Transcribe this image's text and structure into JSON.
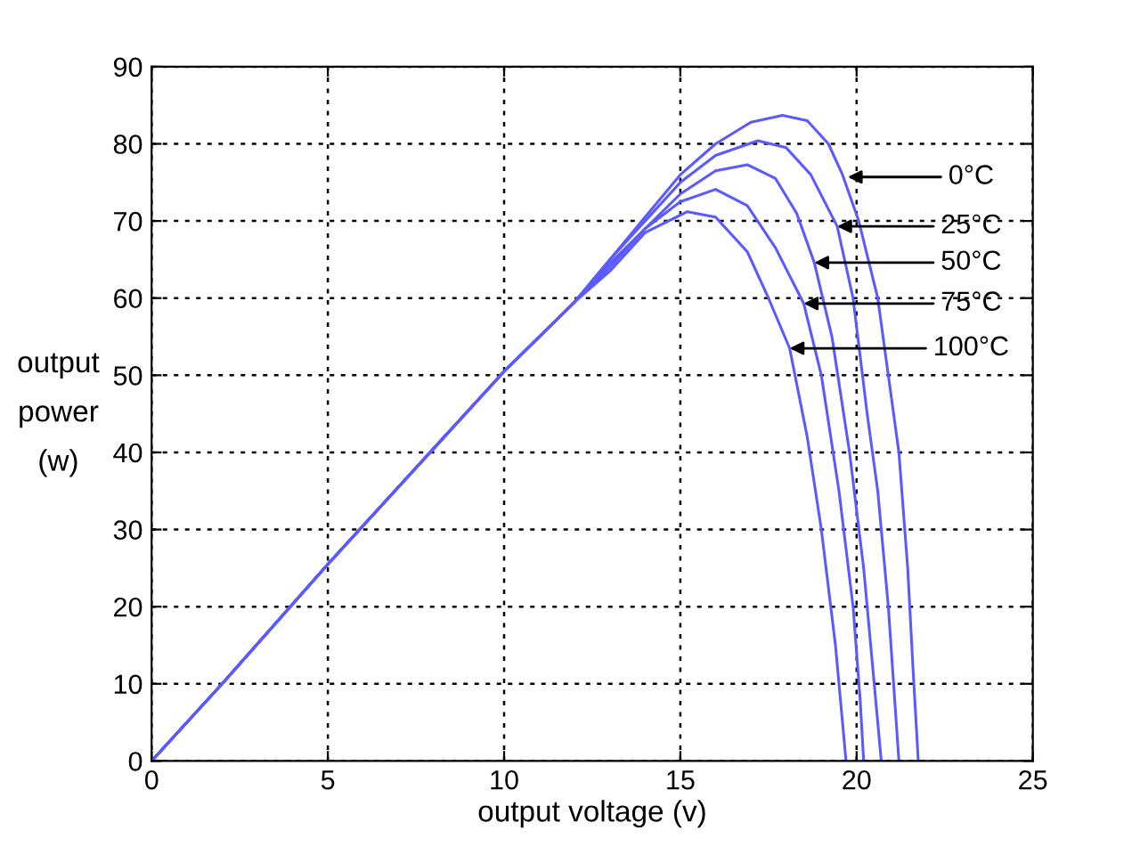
{
  "chart_data": {
    "type": "line",
    "xlabel": "output voltage (v)",
    "ylabel": "output\npower\n(w)",
    "xlim": [
      0,
      25
    ],
    "ylim": [
      0,
      90
    ],
    "xticks": [
      0,
      5,
      10,
      15,
      20,
      25
    ],
    "yticks": [
      0,
      10,
      20,
      30,
      40,
      50,
      60,
      70,
      80,
      90
    ],
    "grid": true,
    "marker": "none",
    "line_style": "solid",
    "series": [
      {
        "color": "#5a5aff",
        "x": [
          0,
          2,
          5,
          8,
          10,
          12,
          13,
          14,
          15,
          16,
          17,
          17.9,
          18.6,
          19.2,
          19.6,
          20.06,
          20.6,
          20.9,
          21.2,
          21.45,
          21.6,
          21.75
        ],
        "values": [
          0,
          10,
          25.5,
          40.5,
          50.5,
          59.5,
          65,
          70.5,
          76,
          80,
          82.8,
          83.7,
          83,
          80,
          76,
          70,
          60,
          50,
          40,
          25,
          12,
          0
        ]
      },
      {
        "color": "#5a5aff",
        "x": [
          0,
          2,
          5,
          8,
          10,
          12,
          13,
          14,
          15,
          16,
          17.2,
          18,
          18.7,
          19.45,
          19.9,
          20.3,
          20.6,
          20.9,
          21.05,
          21.2
        ],
        "values": [
          0,
          10,
          25.5,
          40.5,
          50.5,
          59.5,
          65,
          70,
          75,
          78.5,
          80.4,
          79.5,
          76,
          69.3,
          60,
          45,
          35,
          20,
          10,
          0
        ]
      },
      {
        "color": "#5a5aff",
        "x": [
          0,
          2,
          5,
          8,
          10,
          12,
          13,
          14,
          15,
          16,
          16.9,
          17.7,
          18.3,
          18.8,
          19.3,
          19.8,
          20.2,
          20.5,
          20.7
        ],
        "values": [
          0,
          10,
          25.5,
          40.5,
          50.5,
          59.5,
          64.5,
          69,
          73.5,
          76.5,
          77.3,
          75.5,
          71,
          64.6,
          55,
          40,
          25,
          10,
          0
        ]
      },
      {
        "color": "#5a5aff",
        "x": [
          0,
          2,
          5,
          8,
          10,
          12,
          13,
          14,
          15,
          16,
          16.9,
          17.7,
          18.5,
          19,
          19.5,
          19.9,
          20.1,
          20.2
        ],
        "values": [
          0,
          10,
          25.5,
          40.5,
          50.5,
          59.5,
          64,
          69,
          72.5,
          74.1,
          72,
          66.5,
          59.3,
          50,
          35,
          20,
          8,
          0
        ]
      },
      {
        "color": "#5a5aff",
        "x": [
          0,
          2,
          5,
          8,
          10,
          12,
          13,
          14,
          15.2,
          16,
          16.9,
          17.5,
          18.1,
          18.6,
          19,
          19.4,
          19.7
        ],
        "values": [
          0,
          10,
          25.5,
          40.5,
          50.5,
          59.5,
          63.5,
          68.5,
          71.2,
          70.5,
          66,
          60,
          53.5,
          42,
          30,
          15,
          0
        ]
      }
    ],
    "annotations": [
      {
        "text": "0°C",
        "x": 19.75,
        "y": 75.7
      },
      {
        "text": "25°C",
        "x": 19.45,
        "y": 69.3
      },
      {
        "text": "50°C",
        "x": 18.8,
        "y": 64.6
      },
      {
        "text": "75°C",
        "x": 18.5,
        "y": 59.3
      },
      {
        "text": "100°C",
        "x": 18.1,
        "y": 53.5
      }
    ]
  }
}
